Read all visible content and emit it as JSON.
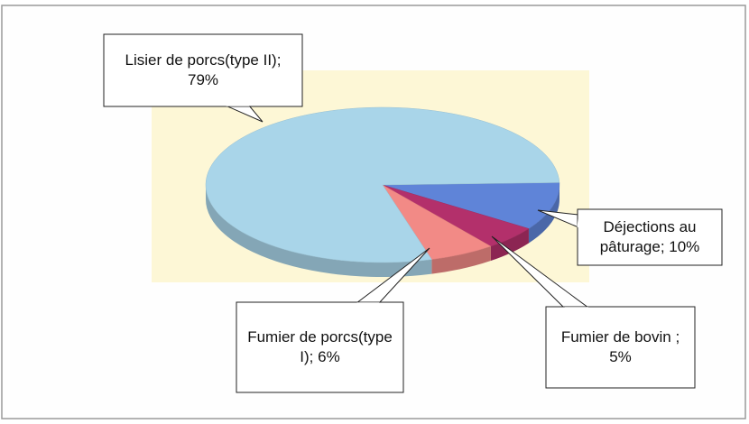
{
  "chart_data": {
    "type": "pie3d",
    "values": [
      10,
      5,
      6,
      79
    ],
    "value_labels": [
      "Déjections au pâturage; 10%",
      "Fumier de bovin ; 5%",
      "Fumier de porcs(type I); 6%",
      "Lisier de porcs(type II); 79%"
    ],
    "colors": [
      "#5f84d8",
      "#b3306b",
      "#f28a86",
      "#a9d5e9"
    ]
  }
}
